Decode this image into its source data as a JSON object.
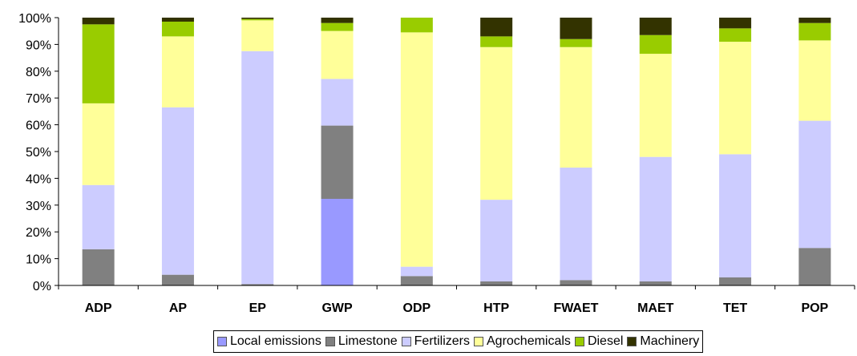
{
  "chart_data": {
    "type": "bar",
    "stacked": true,
    "percent_scale": true,
    "categories": [
      "ADP",
      "AP",
      "EP",
      "GWP",
      "ODP",
      "HTP",
      "FWAET",
      "MAET",
      "TET",
      "POP"
    ],
    "y_ticks": [
      "0%",
      "10%",
      "20%",
      "30%",
      "40%",
      "50%",
      "60%",
      "70%",
      "80%",
      "90%",
      "100%"
    ],
    "ylim": [
      0,
      100
    ],
    "grid": false,
    "legend_position": "bottom",
    "series": [
      {
        "name": "Local emissions",
        "color": "#9999ff",
        "values": [
          0,
          0,
          0,
          32.5,
          0,
          0,
          0,
          0,
          0,
          0
        ]
      },
      {
        "name": "Limestone",
        "color": "#808080",
        "values": [
          13.5,
          4,
          0.5,
          27.5,
          3.5,
          1.5,
          2,
          1.5,
          3,
          14
        ]
      },
      {
        "name": "Fertilizers",
        "color": "#ccccff",
        "values": [
          24,
          62.5,
          87,
          17.5,
          3.5,
          30.5,
          42,
          46.5,
          46,
          47.5
        ]
      },
      {
        "name": "Agrochemicals",
        "color": "#ffff99",
        "values": [
          30.5,
          26.5,
          11.5,
          18,
          87.5,
          57,
          45,
          38.5,
          42,
          30
        ]
      },
      {
        "name": "Diesel",
        "color": "#99cc00",
        "values": [
          29.5,
          5.5,
          0.5,
          3,
          5.5,
          4,
          3,
          7,
          5,
          6.5
        ]
      },
      {
        "name": "Machinery",
        "color": "#333300",
        "values": [
          2.5,
          1.5,
          0.5,
          2,
          0,
          7,
          8,
          6.5,
          4,
          2
        ]
      }
    ]
  }
}
